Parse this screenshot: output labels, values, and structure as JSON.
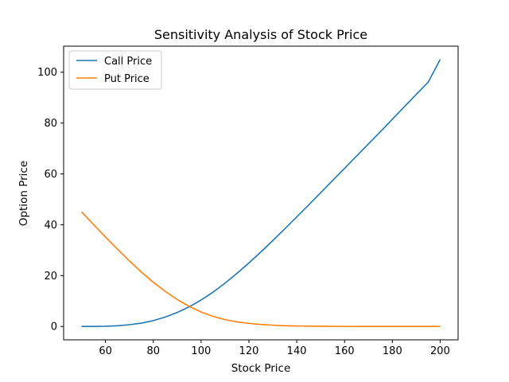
{
  "chart_data": {
    "type": "line",
    "title": "Sensitivity Analysis of Stock Price",
    "xlabel": "Stock Price",
    "ylabel": "Option Price",
    "xlim": [
      42.5,
      207.5
    ],
    "ylim": [
      -5.25,
      110.25
    ],
    "xticks": [
      60,
      80,
      100,
      120,
      140,
      160,
      180,
      200
    ],
    "yticks": [
      0,
      20,
      40,
      60,
      80,
      100
    ],
    "grid": false,
    "legend_position": "upper-left",
    "x": [
      50,
      55,
      60,
      65,
      70,
      75,
      80,
      85,
      90,
      95,
      100,
      105,
      110,
      115,
      120,
      125,
      130,
      135,
      140,
      145,
      150,
      155,
      160,
      165,
      170,
      175,
      180,
      185,
      190,
      195,
      200
    ],
    "series": [
      {
        "name": "Call Price",
        "color": "#1f77b4",
        "values": [
          0.0,
          0.02,
          0.1,
          0.3,
          0.7,
          1.3,
          2.3,
          3.7,
          5.5,
          7.7,
          10.4,
          13.5,
          17.0,
          20.9,
          25.0,
          29.3,
          33.8,
          38.4,
          43.1,
          47.8,
          52.6,
          57.4,
          62.2,
          67.0,
          71.8,
          76.6,
          81.5,
          86.4,
          91.3,
          96.1,
          105.0
        ]
      },
      {
        "name": "Put Price",
        "color": "#ff7f0e",
        "values": [
          45.1,
          40.1,
          35.2,
          30.4,
          25.8,
          21.4,
          17.4,
          13.8,
          10.6,
          7.9,
          5.7,
          4.0,
          2.7,
          1.8,
          1.2,
          0.8,
          0.5,
          0.3,
          0.2,
          0.12,
          0.08,
          0.05,
          0.03,
          0.02,
          0.01,
          0.0,
          0.0,
          0.0,
          0.0,
          0.0,
          0.0
        ]
      }
    ]
  }
}
